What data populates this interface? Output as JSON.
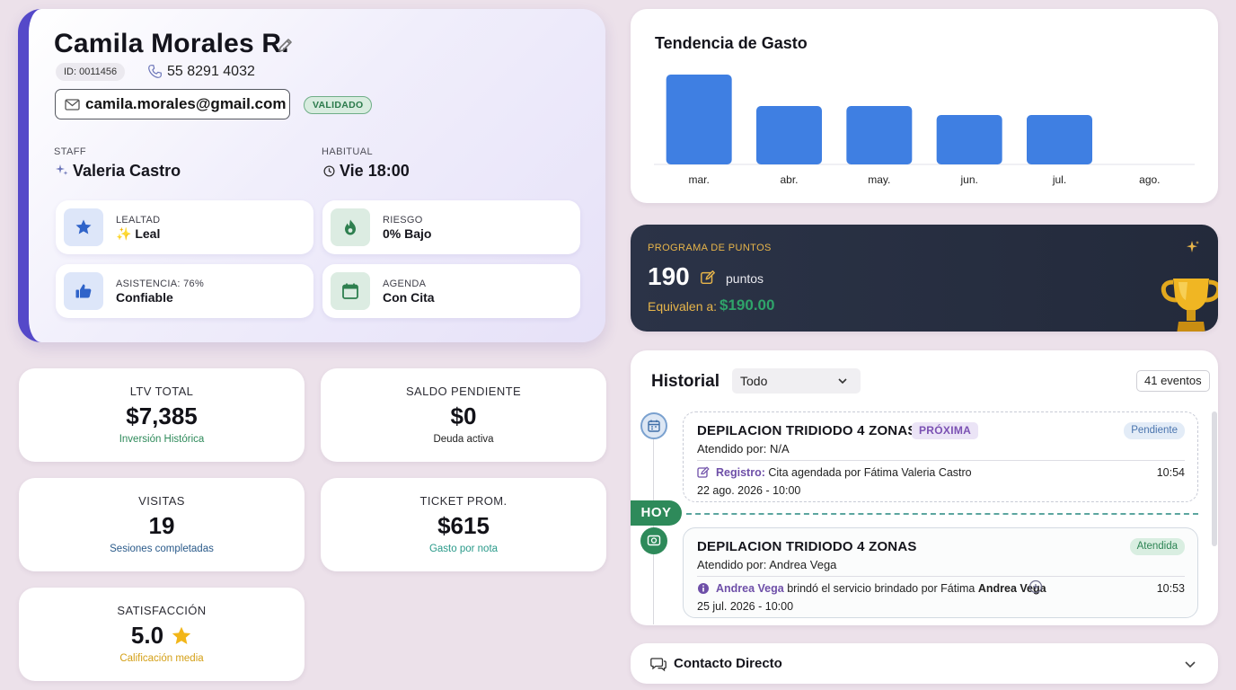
{
  "profile": {
    "name": "Camila Morales R.",
    "id_label": "ID: 0011456",
    "phone": "55 8291 4032",
    "email": "camila.morales@gmail.com",
    "email_status": "VALIDADO",
    "staff_label": "STAFF",
    "staff_value": "Valeria Castro",
    "habitual_label": "HABITUAL",
    "habitual_value": "Vie 18:00",
    "tiles": [
      {
        "label": "LEALTAD",
        "value": "✨ Leal",
        "icon": "star-icon"
      },
      {
        "label": "RIESGO",
        "value": "0% Bajo",
        "icon": "flame-icon"
      },
      {
        "label": "ASISTENCIA: 76%",
        "value": "Confiable",
        "icon": "thumbs-up-icon"
      },
      {
        "label": "AGENDA",
        "value": "Con Cita",
        "icon": "calendar-icon"
      }
    ]
  },
  "stats": [
    {
      "label": "LTV TOTAL",
      "value": "$7,385",
      "sub": "Inversión Histórica",
      "sub_color": "#2e8a5a"
    },
    {
      "label": "SALDO PENDIENTE",
      "value": "$0",
      "sub": "Deuda activa",
      "sub_color": "#222222"
    },
    {
      "label": "VISITAS",
      "value": "19",
      "sub": "Sesiones completadas",
      "sub_color": "#2a5a8a"
    },
    {
      "label": "TICKET PROM.",
      "value": "$615",
      "sub": "Gasto por nota",
      "sub_color": "#2a9a8a"
    },
    {
      "label": "SATISFACCIÓN",
      "value": "5.0",
      "sub": "Calificación media",
      "sub_color": "#d4a017"
    }
  ],
  "chart_data": {
    "type": "bar",
    "title": "Tendencia de Gasto",
    "categories": [
      "mar.",
      "abr.",
      "may.",
      "jun.",
      "jul.",
      "ago."
    ],
    "values": [
      100,
      65,
      65,
      55,
      55,
      0
    ],
    "bar_color": "#3f7fe2"
  },
  "points": {
    "label": "PROGRAMA DE PUNTOS",
    "value": "190",
    "unit": "puntos",
    "equiv_label": "Equivalen a:",
    "equiv_value": "$190.00"
  },
  "history": {
    "title": "Historial",
    "filter": "Todo",
    "count": "41 eventos",
    "today_label": "HOY",
    "events": [
      {
        "title": "DEPILACION TRIDIODO 4 ZONAS",
        "tag": "PRÓXIMA",
        "status": "Pendiente",
        "attended_by": "Atendido por: N/A",
        "note_lead": "Registro:",
        "note_text": "Cita agendada por Fátima Valeria Castro",
        "time": "10:54",
        "date": "22 ago. 2026 - 10:00"
      },
      {
        "title": "DEPILACION TRIDIODO 4 ZONAS",
        "status": "Atendida",
        "attended_by": "Atendido por: Andrea Vega",
        "note_lead": "Andrea Vega",
        "note_text": "brindó el servicio brindado por Fátima",
        "note_tail": "Andrea Vega",
        "time": "10:53",
        "date": "25 jul. 2026 - 10:00"
      }
    ]
  },
  "contact": {
    "title": "Contacto Directo"
  }
}
